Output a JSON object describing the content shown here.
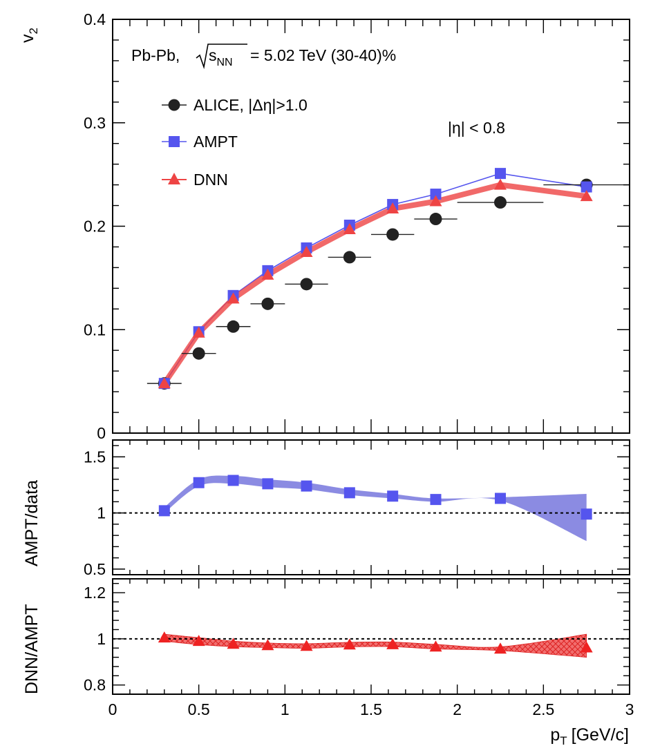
{
  "chart_data": [
    {
      "type": "scatter",
      "panel": "top",
      "ylabel": "v",
      "ylabel_sub": "2",
      "ylim": [
        0,
        0.4
      ],
      "yticks": [
        0,
        0.1,
        0.2,
        0.3,
        0.4
      ],
      "xlim": [
        0,
        3
      ],
      "annotation_system": "Pb-Pb,",
      "annotation_sqrt": "s",
      "annotation_sqrt_sub": "NN",
      "annotation_energy": "= 5.02 TeV (30-40)%",
      "annotation_eta": "|η| < 0.8",
      "legend_placement": "top-left",
      "series": [
        {
          "name": "ALICE, |Δη|>1.0",
          "marker": "circle",
          "color": "#222222",
          "x": [
            0.3,
            0.5,
            0.7,
            0.9,
            1.125,
            1.375,
            1.625,
            1.875,
            2.25,
            2.75
          ],
          "xerr": [
            0.1,
            0.1,
            0.1,
            0.1,
            0.125,
            0.125,
            0.125,
            0.125,
            0.25,
            0.25
          ],
          "y": [
            0.048,
            0.077,
            0.103,
            0.125,
            0.144,
            0.17,
            0.192,
            0.207,
            0.223,
            0.24
          ]
        },
        {
          "name": "AMPT",
          "marker": "square",
          "color": "#5555ee",
          "x": [
            0.3,
            0.5,
            0.7,
            0.9,
            1.125,
            1.375,
            1.625,
            1.875,
            2.25,
            2.75
          ],
          "y": [
            0.048,
            0.098,
            0.133,
            0.157,
            0.179,
            0.201,
            0.221,
            0.231,
            0.251,
            0.238
          ]
        },
        {
          "name": "DNN",
          "marker": "triangle",
          "color": "#ee4444",
          "x": [
            0.3,
            0.5,
            0.7,
            0.9,
            1.125,
            1.375,
            1.625,
            1.875,
            2.25,
            2.75
          ],
          "y": [
            0.048,
            0.097,
            0.13,
            0.153,
            0.175,
            0.197,
            0.217,
            0.224,
            0.24,
            0.229
          ]
        }
      ]
    },
    {
      "type": "scatter",
      "panel": "middle",
      "ylabel": "AMPT/data",
      "ylim": [
        0.45,
        1.65
      ],
      "yticks": [
        0.5,
        1,
        1.5
      ],
      "reference_line": 1,
      "series": [
        {
          "name": "AMPT/data",
          "marker": "square",
          "color": "#5555ee",
          "band_color": "#7777dd",
          "x": [
            0.3,
            0.5,
            0.7,
            0.9,
            1.125,
            1.375,
            1.625,
            1.875,
            2.25,
            2.75
          ],
          "y": [
            1.02,
            1.27,
            1.29,
            1.26,
            1.24,
            1.18,
            1.15,
            1.12,
            1.13,
            0.99
          ],
          "band_upper": [
            1.05,
            1.3,
            1.33,
            1.3,
            1.27,
            1.21,
            1.17,
            1.13,
            1.14,
            1.17
          ],
          "band_lower": [
            1.0,
            1.24,
            1.26,
            1.23,
            1.21,
            1.16,
            1.13,
            1.1,
            1.11,
            0.75
          ]
        }
      ]
    },
    {
      "type": "scatter",
      "panel": "bottom",
      "ylabel": "DNN/AMPT",
      "xlabel": "p",
      "xlabel_sub": "T",
      "xlabel_unit": "[GeV/c]",
      "xlim": [
        0,
        3
      ],
      "xticks": [
        0,
        0.5,
        1,
        1.5,
        2,
        2.5,
        3
      ],
      "ylim": [
        0.76,
        1.26
      ],
      "yticks": [
        0.8,
        1,
        1.2
      ],
      "reference_line": 1,
      "series": [
        {
          "name": "DNN/AMPT",
          "marker": "triangle",
          "color": "#ee2222",
          "band_color": "#ee5555",
          "x": [
            0.3,
            0.5,
            0.7,
            0.9,
            1.125,
            1.375,
            1.625,
            1.875,
            2.25,
            2.75
          ],
          "y": [
            1.005,
            0.99,
            0.978,
            0.972,
            0.969,
            0.975,
            0.976,
            0.966,
            0.957,
            0.962
          ],
          "band_upper": [
            1.02,
            1.005,
            0.99,
            0.982,
            0.979,
            0.985,
            0.986,
            0.976,
            0.965,
            1.02
          ],
          "band_lower": [
            0.99,
            0.975,
            0.966,
            0.962,
            0.959,
            0.965,
            0.966,
            0.956,
            0.949,
            0.92
          ]
        }
      ]
    }
  ]
}
